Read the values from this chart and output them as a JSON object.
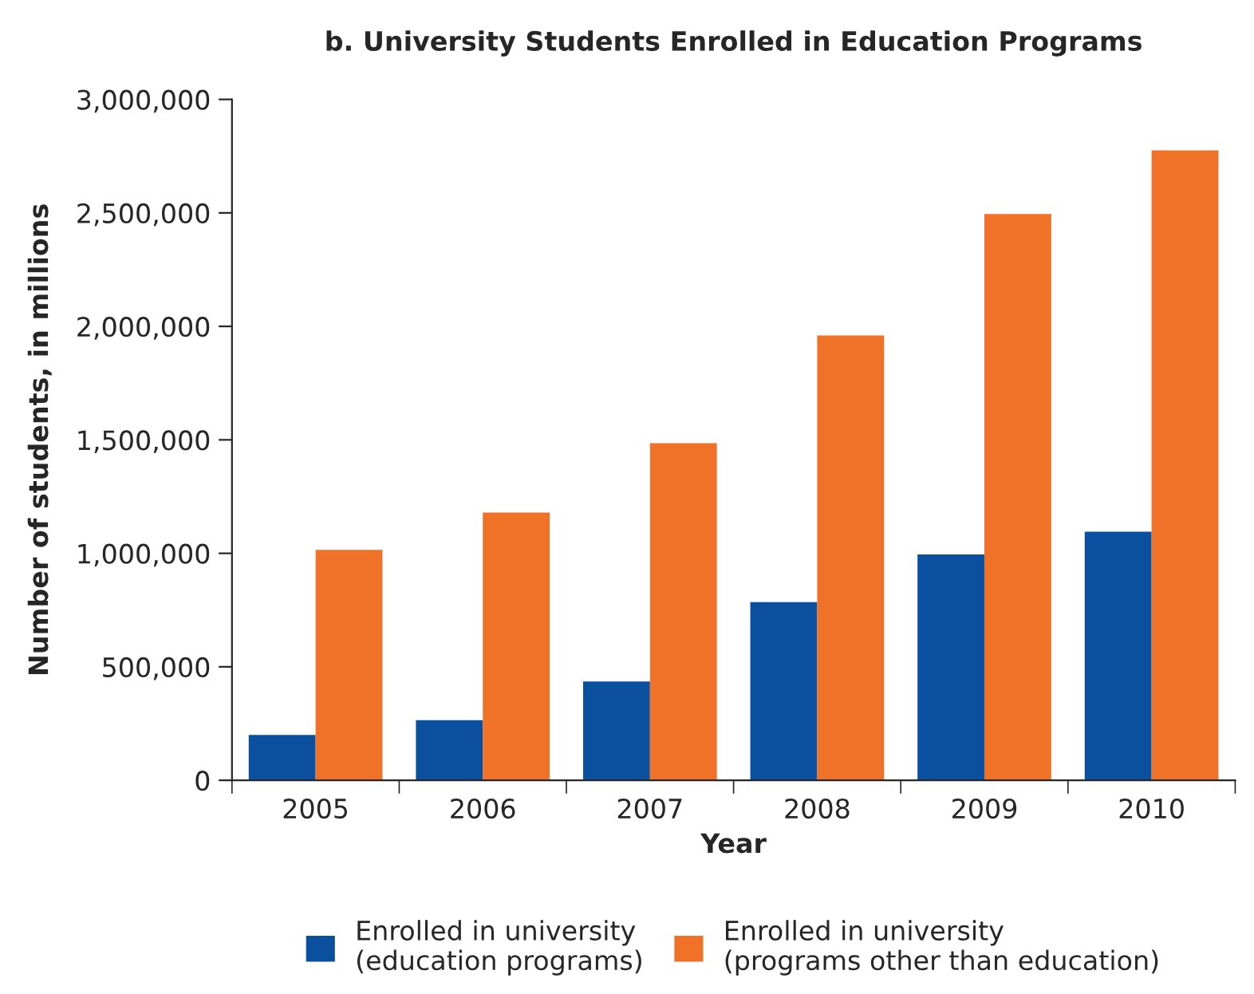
{
  "chart_data": {
    "type": "bar",
    "title": "b. University Students Enrolled in Education Programs",
    "xlabel": "Year",
    "ylabel": "Number of students, in millions",
    "categories": [
      "2005",
      "2006",
      "2007",
      "2008",
      "2009",
      "2010"
    ],
    "series": [
      {
        "name": "Enrolled in university\n(education programs)",
        "color": "#0b4f9f",
        "values": [
          200000,
          265000,
          435000,
          785000,
          995000,
          1095000
        ]
      },
      {
        "name": "Enrolled in university\n(programs other than education)",
        "color": "#f07228",
        "values": [
          1015000,
          1180000,
          1485000,
          1960000,
          2495000,
          2775000
        ]
      }
    ],
    "ylim": [
      0,
      3000000
    ],
    "yticks": [
      {
        "value": 0,
        "label": "0"
      },
      {
        "value": 500000,
        "label": "500,000"
      },
      {
        "value": 1000000,
        "label": "1,000,000"
      },
      {
        "value": 1500000,
        "label": "1,500,000"
      },
      {
        "value": 2000000,
        "label": "2,000,000"
      },
      {
        "value": 2500000,
        "label": "2,500,000"
      },
      {
        "value": 3000000,
        "label": "3,000,000"
      }
    ],
    "grid": false,
    "legend": "bottom"
  }
}
